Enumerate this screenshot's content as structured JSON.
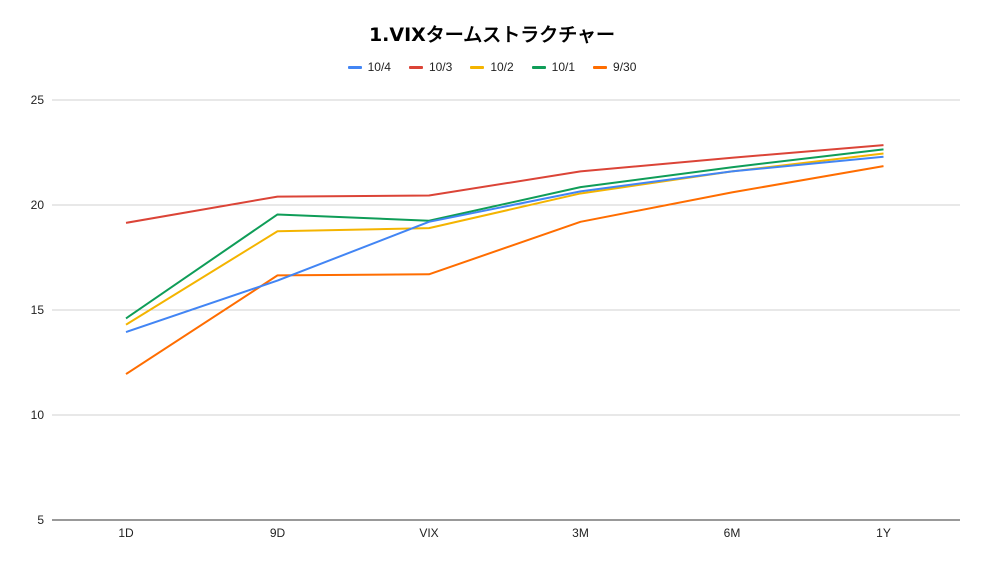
{
  "chart_data": {
    "type": "line",
    "title": "1.VIXタームストラクチャー",
    "categories": [
      "1D",
      "9D",
      "VIX",
      "3M",
      "6M",
      "1Y"
    ],
    "ylim": [
      5,
      25
    ],
    "yticks": [
      5,
      10,
      15,
      20,
      25
    ],
    "grid": true,
    "legend_position": "top",
    "series": [
      {
        "name": "10/4",
        "color": "#4285f4",
        "values": [
          13.95,
          16.4,
          19.2,
          20.65,
          21.6,
          22.3
        ]
      },
      {
        "name": "10/3",
        "color": "#db4437",
        "values": [
          19.15,
          20.4,
          20.45,
          21.6,
          22.25,
          22.85
        ]
      },
      {
        "name": "10/2",
        "color": "#f4b400",
        "values": [
          14.3,
          18.75,
          18.9,
          20.55,
          21.6,
          22.45
        ]
      },
      {
        "name": "10/1",
        "color": "#0f9d58",
        "values": [
          14.6,
          19.55,
          19.25,
          20.85,
          21.8,
          22.65
        ]
      },
      {
        "name": "9/30",
        "color": "#ff6d00",
        "values": [
          11.95,
          16.65,
          16.7,
          19.2,
          20.6,
          21.85
        ]
      }
    ]
  }
}
